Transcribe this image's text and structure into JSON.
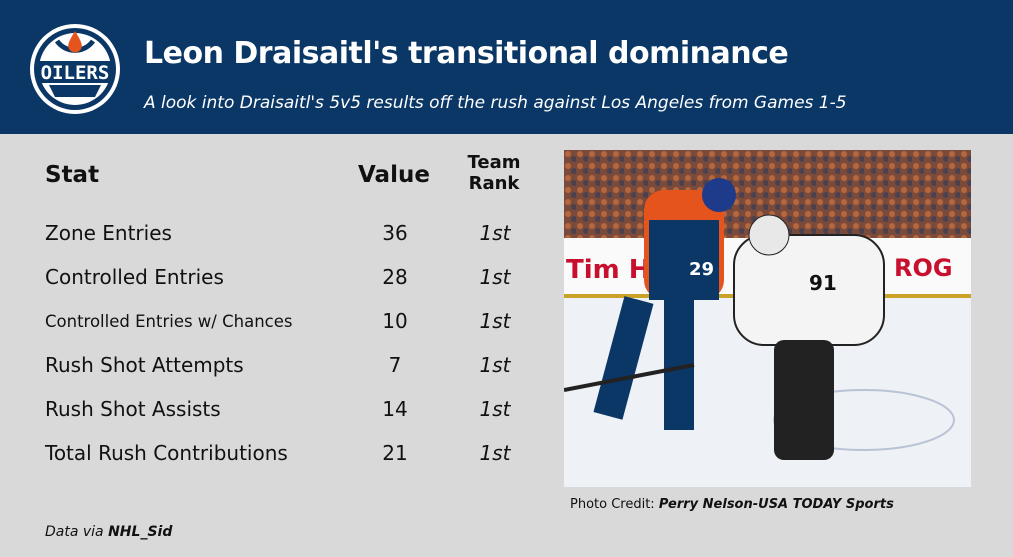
{
  "header": {
    "title": "Leon Draisaitl's transitional dominance",
    "subtitle": "A look into Draisaitl's 5v5 results off the rush against Los Angeles from Games 1-5",
    "logo_text": "OILERS"
  },
  "table": {
    "headers": {
      "stat": "Stat",
      "value": "Value",
      "rank_line1": "Team",
      "rank_line2": "Rank"
    },
    "rows": [
      {
        "stat": "Zone Entries",
        "value": "36",
        "rank": "1st"
      },
      {
        "stat": "Controlled Entries",
        "value": "28",
        "rank": "1st"
      },
      {
        "stat": "Controlled Entries w/ Chances",
        "value": "10",
        "rank": "1st"
      },
      {
        "stat": "Rush Shot Attempts",
        "value": "7",
        "rank": "1st"
      },
      {
        "stat": "Rush Shot Assists",
        "value": "14",
        "rank": "1st"
      },
      {
        "stat": "Total Rush Contributions",
        "value": "21",
        "rank": "1st"
      }
    ]
  },
  "photo": {
    "credit_label": "Photo Credit:",
    "credit_name": "Perry Nelson-USA TODAY Sports",
    "jersey_oilers": "29",
    "jersey_kings": "91",
    "board_text": "Tim Ho",
    "board_text2": "ROG"
  },
  "footer": {
    "source_label": "Data via",
    "source_name": "NHL_Sid"
  },
  "colors": {
    "header_bg": "#0b3766",
    "background": "#d9d9d9",
    "oilers_orange": "#e5541c",
    "oilers_blue": "#0b3766"
  }
}
